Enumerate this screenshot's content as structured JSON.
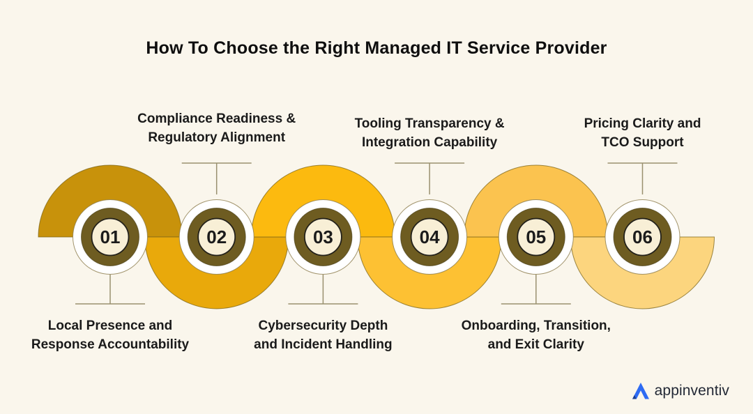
{
  "title": "How To Choose the Right Managed IT Service Provider",
  "steps": [
    {
      "number": "01",
      "label_lines": [
        "Local Presence and",
        "Response Accountability"
      ],
      "label_position": "below",
      "arc_direction": "up",
      "arc_color": "#C8920B"
    },
    {
      "number": "02",
      "label_lines": [
        "Compliance Readiness &",
        "Regulatory Alignment"
      ],
      "label_position": "above",
      "arc_direction": "down",
      "arc_color": "#E9A90B"
    },
    {
      "number": "03",
      "label_lines": [
        "Cybersecurity Depth",
        "and Incident Handling"
      ],
      "label_position": "below",
      "arc_direction": "up",
      "arc_color": "#FCBA0F"
    },
    {
      "number": "04",
      "label_lines": [
        "Tooling Transparency &",
        "Integration Capability"
      ],
      "label_position": "above",
      "arc_direction": "down",
      "arc_color": "#FDC133"
    },
    {
      "number": "05",
      "label_lines": [
        "Onboarding, Transition,",
        "and Exit Clarity"
      ],
      "label_position": "below",
      "arc_direction": "up",
      "arc_color": "#FBC34F"
    },
    {
      "number": "06",
      "label_lines": [
        "Pricing Clarity and",
        "TCO Support"
      ],
      "label_position": "above",
      "arc_direction": "down",
      "arc_color": "#FCD57E"
    }
  ],
  "colors": {
    "background": "#FAF6EC",
    "arc_outline": "#7A6318",
    "gap_ring_fill": "#FFFFFF",
    "gap_ring_outline": "#8B7A4A",
    "circle_ring": "#6E5C21",
    "circle_ring_outline": "#3F350F",
    "circle_inner_fill": "#F8EFD6",
    "circle_inner_outline": "#23211A",
    "number_text": "#1B1B1B",
    "connector_line": "#99906F",
    "label_text": "#1A1A1A",
    "title_text": "#0E0E0E"
  },
  "logo": {
    "text": "appinventiv",
    "mark_icon": "appinventiv-a-mark",
    "mark_color": "#2E6BF3",
    "mark_accent_color": "#1C3E8F",
    "text_color": "#222835"
  }
}
